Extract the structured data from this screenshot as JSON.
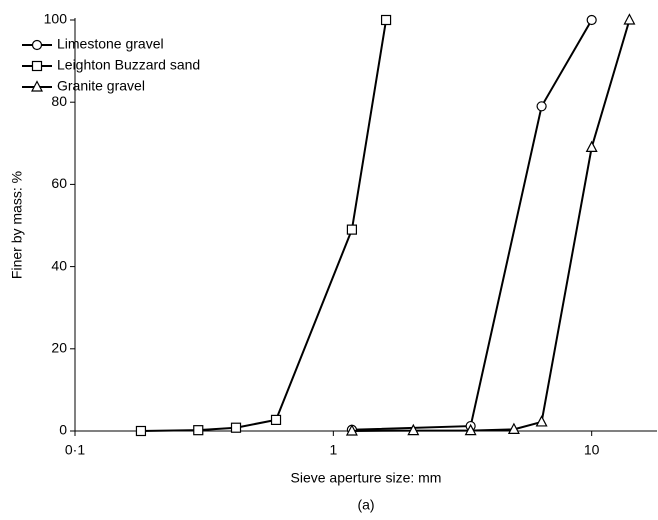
{
  "chart_data": {
    "type": "line",
    "x_scale": "log",
    "xlabel": "Sieve aperture size: mm",
    "ylabel": "Finer by mass: %",
    "caption": "(a)",
    "xlim": [
      0.1,
      17.9
    ],
    "xticks": [
      {
        "value": 0.1,
        "label": "0·1"
      },
      1,
      10
    ],
    "ylim": [
      0,
      100
    ],
    "yticks": [
      0,
      20,
      40,
      60,
      80,
      100
    ],
    "legend": "upper left",
    "series": [
      {
        "name": "Limestone gravel",
        "color": "#000000",
        "marker": "circle",
        "x": [
          1.18,
          3.4,
          6.4,
          10
        ],
        "values": [
          0.3,
          1.2,
          79,
          100
        ]
      },
      {
        "name": "Leighton Buzzard sand",
        "color": "#000000",
        "marker": "square",
        "x": [
          0.18,
          0.3,
          0.42,
          0.6,
          1.18,
          1.6
        ],
        "values": [
          0,
          0.2,
          0.8,
          2.7,
          49,
          100
        ]
      },
      {
        "name": "Granite gravel",
        "color": "#000000",
        "marker": "triangle",
        "x": [
          1.18,
          2.04,
          3.4,
          5.0,
          6.4,
          10,
          14
        ],
        "values": [
          0,
          0.1,
          0.1,
          0.4,
          2.2,
          69,
          100
        ]
      }
    ]
  }
}
